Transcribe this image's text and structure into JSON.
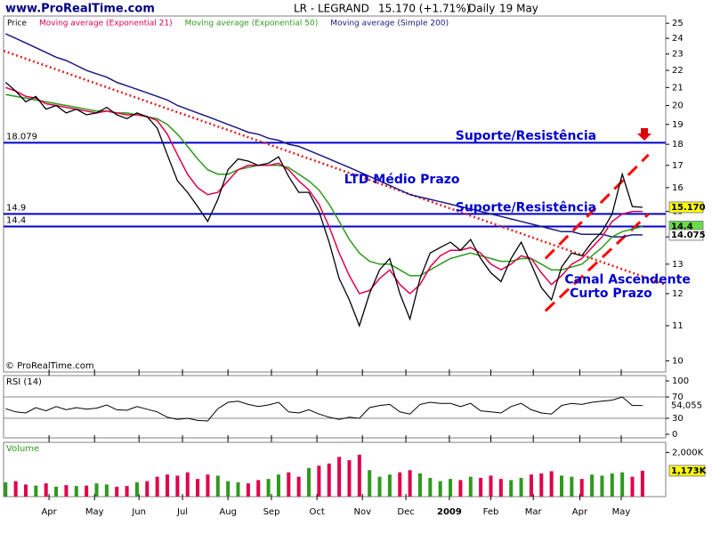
{
  "header": {
    "site": "www.ProRealTime.com",
    "symbol": "LR - LEGRAND",
    "quote": "15.170 (+1.71%)",
    "period": "Daily",
    "date": "19 May",
    "copyright": "© ProRealTime.com"
  },
  "chart_data": [
    {
      "type": "line",
      "panel": "price",
      "log_scale": true,
      "ylim": [
        9.7,
        25.5
      ],
      "yticks": [
        10,
        11,
        12,
        13,
        14,
        15,
        16,
        17,
        18,
        19,
        20,
        21,
        22,
        23,
        24,
        25
      ],
      "xlim": [
        -0.2,
        65.3
      ],
      "xticks": [
        {
          "value": 4.3,
          "label": "Apr"
        },
        {
          "value": 8.8,
          "label": "May"
        },
        {
          "value": 13.2,
          "label": "Jun"
        },
        {
          "value": 17.5,
          "label": "Jul"
        },
        {
          "value": 22,
          "label": "Aug"
        },
        {
          "value": 26.3,
          "label": "Sep"
        },
        {
          "value": 30.8,
          "label": "Oct"
        },
        {
          "value": 35.3,
          "label": "Nov"
        },
        {
          "value": 39.6,
          "label": "Dec"
        },
        {
          "value": 43.9,
          "label": "2009",
          "bold": true
        },
        {
          "value": 48,
          "label": "Feb"
        },
        {
          "value": 52.2,
          "label": "Mar"
        },
        {
          "value": 56.8,
          "label": "Apr"
        },
        {
          "value": 60.9,
          "label": "May"
        }
      ],
      "series": [
        {
          "name": "Price",
          "color": "#000000",
          "values": [
            21.3,
            20.8,
            20.2,
            20.5,
            19.8,
            20.0,
            19.6,
            19.8,
            19.5,
            19.6,
            19.9,
            19.5,
            19.3,
            19.6,
            19.4,
            18.8,
            17.5,
            16.3,
            15.8,
            15.2,
            14.6,
            15.5,
            16.8,
            17.3,
            17.2,
            17.0,
            17.1,
            17.4,
            16.5,
            15.8,
            15.8,
            15.0,
            13.8,
            12.5,
            11.8,
            11.0,
            12.0,
            12.8,
            13.2,
            12.0,
            11.2,
            12.5,
            13.4,
            13.6,
            13.8,
            13.5,
            13.9,
            13.2,
            12.7,
            12.4,
            13.2,
            13.8,
            13.0,
            12.2,
            11.8,
            12.9,
            13.4,
            13.3,
            13.8,
            14.2,
            14.9,
            16.6,
            15.2,
            15.17
          ]
        },
        {
          "name": "Moving average (Exponential 21)",
          "color": "#e0004a",
          "values": [
            21.0,
            20.8,
            20.5,
            20.4,
            20.1,
            20.0,
            19.9,
            19.8,
            19.7,
            19.6,
            19.7,
            19.6,
            19.5,
            19.5,
            19.4,
            19.2,
            18.5,
            17.5,
            16.6,
            16.0,
            15.7,
            15.8,
            16.3,
            16.8,
            17.0,
            17.0,
            17.0,
            17.1,
            16.8,
            16.3,
            15.9,
            15.3,
            14.4,
            13.4,
            12.6,
            12.0,
            12.1,
            12.5,
            12.8,
            12.3,
            12.0,
            12.3,
            12.9,
            13.3,
            13.5,
            13.5,
            13.6,
            13.4,
            13.0,
            12.8,
            13.0,
            13.3,
            13.2,
            12.7,
            12.3,
            12.6,
            13.0,
            13.2,
            13.6,
            14.0,
            14.6,
            14.9,
            15.0,
            15.0
          ]
        },
        {
          "name": "Moving average (Exponential 50)",
          "color": "#2e9a1e",
          "values": [
            20.6,
            20.5,
            20.4,
            20.3,
            20.2,
            20.1,
            20.0,
            19.9,
            19.8,
            19.7,
            19.7,
            19.6,
            19.6,
            19.5,
            19.4,
            19.3,
            19.0,
            18.5,
            17.9,
            17.3,
            16.8,
            16.6,
            16.6,
            16.8,
            16.9,
            17.0,
            17.0,
            17.0,
            16.9,
            16.6,
            16.3,
            15.9,
            15.3,
            14.6,
            13.9,
            13.4,
            13.1,
            13.0,
            13.0,
            12.8,
            12.6,
            12.6,
            12.8,
            13.0,
            13.2,
            13.3,
            13.4,
            13.3,
            13.2,
            13.1,
            13.1,
            13.2,
            13.2,
            13.0,
            12.8,
            12.8,
            12.9,
            13.0,
            13.3,
            13.6,
            14.0,
            14.2,
            14.3,
            14.4
          ]
        },
        {
          "name": "Moving average (Simple 200)",
          "color": "#1a1a80",
          "values": [
            24.3,
            24.0,
            23.7,
            23.4,
            23.1,
            22.8,
            22.6,
            22.3,
            22.0,
            21.8,
            21.6,
            21.3,
            21.1,
            20.9,
            20.7,
            20.5,
            20.3,
            20.0,
            19.8,
            19.6,
            19.4,
            19.2,
            19.0,
            18.8,
            18.6,
            18.5,
            18.3,
            18.2,
            18.0,
            17.9,
            17.7,
            17.5,
            17.3,
            17.1,
            16.9,
            16.7,
            16.5,
            16.3,
            16.1,
            15.9,
            15.7,
            15.6,
            15.5,
            15.4,
            15.3,
            15.2,
            15.1,
            15.0,
            14.9,
            14.8,
            14.7,
            14.6,
            14.5,
            14.4,
            14.3,
            14.2,
            14.2,
            14.1,
            14.1,
            14.1,
            14.0,
            14.0,
            14.075,
            14.075
          ]
        }
      ],
      "levels": [
        {
          "value": 18.079,
          "label": "18.079"
        },
        {
          "value": 14.9,
          "label": "14.9"
        },
        {
          "value": 14.4,
          "label": "14.4"
        }
      ],
      "trendlines": [
        {
          "style": "dotted",
          "x": [
            -0.2,
            65.3
          ],
          "values": [
            23.2,
            12.3
          ]
        },
        {
          "style": "dashed",
          "x": [
            53.4,
            63.6
          ],
          "values": [
            11.45,
            14.9
          ]
        },
        {
          "style": "dashed",
          "x": [
            53.4,
            63.6
          ],
          "values": [
            13.2,
            17.5
          ]
        }
      ],
      "annotations": [
        {
          "text": "Suporte/Resistência",
          "x": 44.5,
          "value": 18.4
        },
        {
          "text": "LTD Médio Prazo",
          "x": 33.5,
          "value": 16.35
        },
        {
          "text": "Suporte/Resistência",
          "x": 44.5,
          "value": 15.15
        },
        {
          "text": "Canal Ascendente",
          "x": 55.3,
          "value": 12.45
        },
        {
          "text": "Curto Prazo",
          "x": 55.8,
          "value": 12.0
        }
      ],
      "badges": [
        {
          "value": 15.17,
          "label": "15.170",
          "color": "#ffff00"
        },
        {
          "value": 14.4,
          "label": "14.4",
          "color": "#66dd44"
        },
        {
          "value": 14.075,
          "label": "14.075",
          "color": "#ffffff"
        }
      ]
    },
    {
      "type": "line",
      "panel": "rsi",
      "title": "RSI (14)",
      "ylim": [
        0,
        100
      ],
      "yticks": [
        0,
        30,
        70,
        100
      ],
      "bands": [
        30,
        70
      ],
      "last": {
        "value": 54.055,
        "label": "54,055"
      },
      "series": [
        {
          "name": "RSI (14)",
          "color": "#000000",
          "values": [
            48,
            42,
            40,
            50,
            44,
            52,
            46,
            50,
            47,
            49,
            55,
            46,
            45,
            52,
            47,
            42,
            32,
            28,
            30,
            26,
            25,
            48,
            60,
            62,
            56,
            52,
            55,
            60,
            42,
            40,
            46,
            38,
            32,
            28,
            32,
            30,
            50,
            54,
            56,
            42,
            38,
            56,
            60,
            58,
            58,
            52,
            58,
            44,
            42,
            40,
            52,
            58,
            46,
            40,
            38,
            54,
            58,
            56,
            60,
            62,
            64,
            70,
            54,
            54.055
          ]
        }
      ]
    },
    {
      "type": "bar",
      "panel": "volume",
      "title": "Volume",
      "ylim": [
        0,
        2460000
      ],
      "yticks": [
        {
          "value": 2000000,
          "label": "2,000K"
        }
      ],
      "last": {
        "value": 1173000,
        "label": "1,173K"
      },
      "series": [
        {
          "name": "Volume",
          "color": "#2e9a1e",
          "down_color": "#e0004a",
          "values": [
            650000,
            700000,
            550000,
            500000,
            600000,
            450000,
            520000,
            480000,
            500000,
            600000,
            550000,
            450000,
            480000,
            650000,
            700000,
            900000,
            1000000,
            950000,
            1100000,
            800000,
            1000000,
            950000,
            700000,
            650000,
            600000,
            750000,
            800000,
            1000000,
            1100000,
            900000,
            1300000,
            1400000,
            1500000,
            1800000,
            1650000,
            1900000,
            1200000,
            900000,
            1000000,
            1100000,
            1200000,
            1050000,
            850000,
            700000,
            800000,
            750000,
            900000,
            850000,
            950000,
            800000,
            750000,
            850000,
            1000000,
            1050000,
            1150000,
            950000,
            900000,
            800000,
            1000000,
            950000,
            1050000,
            1100000,
            900000,
            1173000
          ]
        }
      ]
    }
  ]
}
